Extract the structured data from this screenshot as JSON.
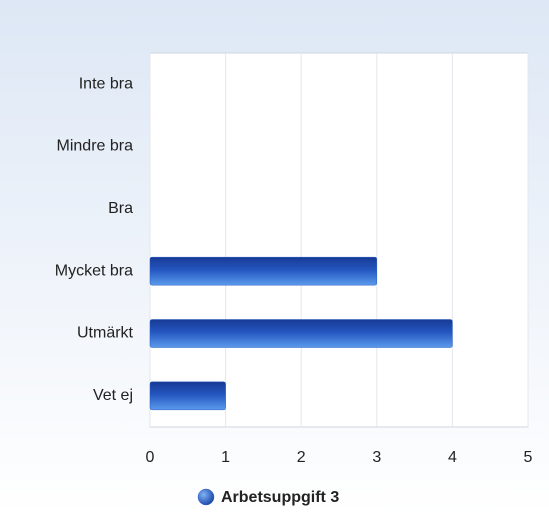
{
  "chart_data": {
    "type": "hbar",
    "categories": [
      "Inte bra",
      "Mindre bra",
      "Bra",
      "Mycket bra",
      "Utmärkt",
      "Vet ej"
    ],
    "series": [
      {
        "name": "Arbetsuppgift 3",
        "color": "#2a5cc4",
        "values": [
          0,
          0,
          0,
          3,
          4,
          1
        ]
      }
    ],
    "xlim": [
      0,
      5
    ],
    "xticks": [
      0,
      1,
      2,
      3,
      4,
      5
    ],
    "grid": true,
    "legend": "bottom"
  }
}
